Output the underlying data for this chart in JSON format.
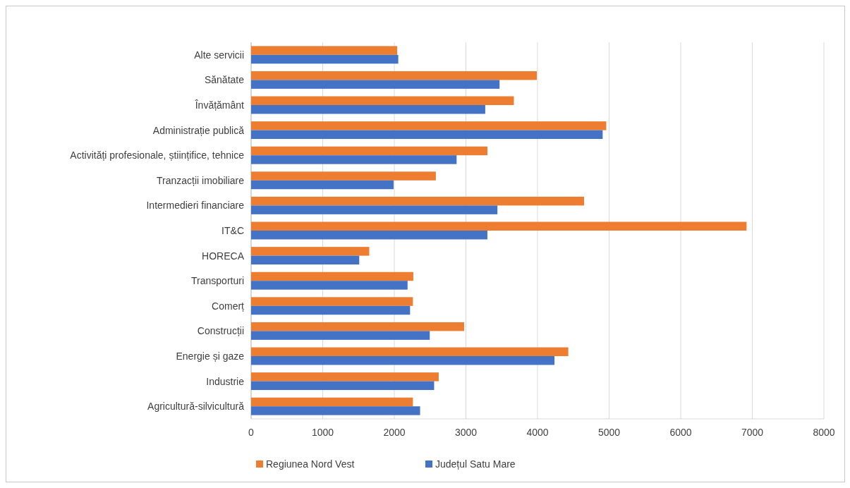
{
  "chart_data": {
    "type": "bar",
    "orientation": "horizontal",
    "categories": [
      "Alte servicii",
      "Sănătate",
      "Învățământ",
      "Administrație publică",
      "Activități profesionale, științifice, tehnice",
      "Tranzacții imobiliare",
      "Intermedieri financiare",
      "IT&C",
      "HORECA",
      "Transporturi",
      "Comerț",
      "Construcții",
      "Energie și gaze",
      "Industrie",
      "Agricultură-silvicultură"
    ],
    "series": [
      {
        "name": "Regiunea Nord Vest",
        "color": "#ed7d31",
        "values": [
          2040,
          3990,
          3670,
          4960,
          3300,
          2580,
          4650,
          6920,
          1650,
          2265,
          2260,
          2975,
          4430,
          2620,
          2260
        ]
      },
      {
        "name": "Județul Satu Mare",
        "color": "#4472c4",
        "values": [
          2055,
          3470,
          3270,
          4910,
          2870,
          1990,
          3440,
          3300,
          1510,
          2185,
          2220,
          2495,
          4237,
          2556,
          2360
        ]
      }
    ],
    "xlim": [
      0,
      8000
    ],
    "xticks": [
      0,
      1000,
      2000,
      3000,
      4000,
      5000,
      6000,
      7000,
      8000
    ],
    "grid": "x",
    "legend": "bottom"
  }
}
